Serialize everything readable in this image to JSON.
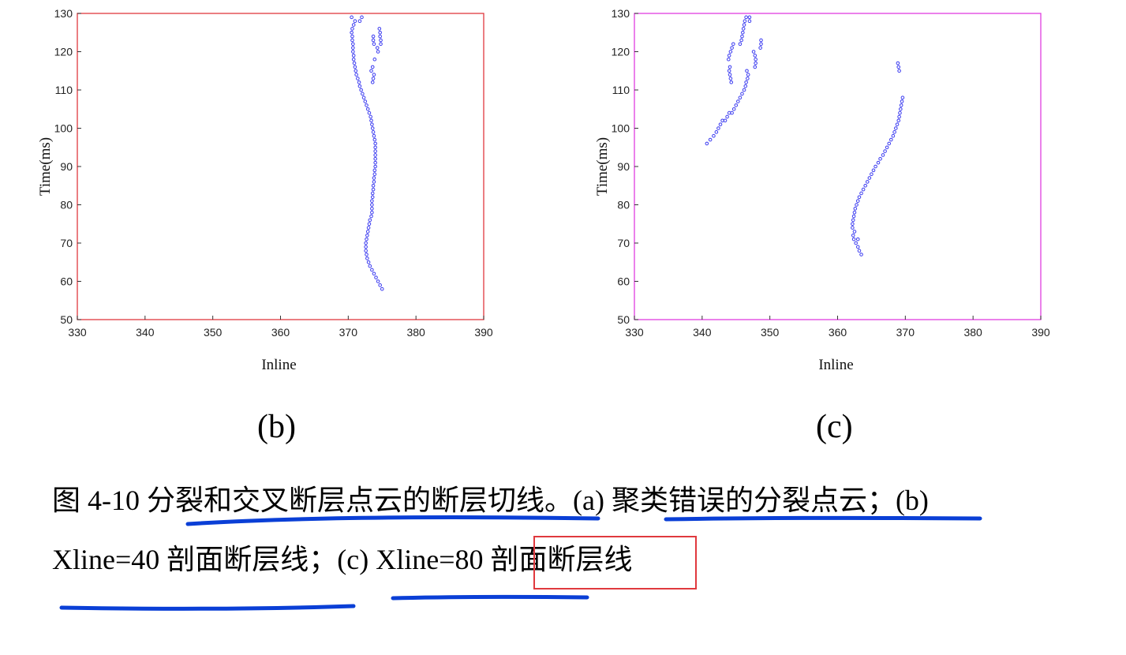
{
  "charts": {
    "b": {
      "panel_label": "(b)"
    },
    "c": {
      "panel_label": "(c)"
    }
  },
  "caption": {
    "line1": "图 4-10  分裂和交叉断层点云的断层切线。(a)  聚类错误的分裂点云；(b)",
    "line2_part1": "Xline=40 剖面断层线；(c) Xline=80 ",
    "line2_boxed": "剖面断层线"
  },
  "colors": {
    "frame_b": "#e0393e",
    "frame_c": "#e03de0",
    "points": "#3a3af0",
    "annotation_underline": "#0a3fd6",
    "annotation_box": "#e0393e"
  },
  "chart_data": [
    {
      "type": "scatter",
      "id": "b",
      "xlabel": "Inline",
      "ylabel": "Time(ms)",
      "xlim": [
        330,
        390
      ],
      "ylim": [
        50,
        130
      ],
      "xticks": [
        330,
        340,
        350,
        360,
        370,
        380,
        390
      ],
      "yticks": [
        50,
        60,
        70,
        80,
        90,
        100,
        110,
        120,
        130
      ],
      "grid": false,
      "series": [
        {
          "points": [
            [
              375.0,
              58
            ],
            [
              374.7,
              59
            ],
            [
              374.4,
              60
            ],
            [
              374.1,
              61
            ],
            [
              373.8,
              62
            ],
            [
              373.5,
              63
            ],
            [
              373.2,
              64
            ],
            [
              373.0,
              65
            ],
            [
              372.8,
              66
            ],
            [
              372.7,
              67
            ],
            [
              372.6,
              68
            ],
            [
              372.6,
              69
            ],
            [
              372.6,
              70
            ],
            [
              372.7,
              71
            ],
            [
              372.8,
              72
            ],
            [
              372.9,
              73
            ],
            [
              373.0,
              74
            ],
            [
              373.1,
              75
            ],
            [
              373.2,
              76
            ],
            [
              373.4,
              77
            ],
            [
              373.5,
              78
            ],
            [
              373.5,
              79
            ],
            [
              373.5,
              80
            ],
            [
              373.5,
              81
            ],
            [
              373.6,
              82
            ],
            [
              373.6,
              83
            ],
            [
              373.7,
              84
            ],
            [
              373.7,
              85
            ],
            [
              373.8,
              86
            ],
            [
              373.8,
              87
            ],
            [
              373.9,
              88
            ],
            [
              373.9,
              89
            ],
            [
              374.0,
              90
            ],
            [
              374.0,
              91
            ],
            [
              374.0,
              92
            ],
            [
              374.0,
              93
            ],
            [
              374.0,
              94
            ],
            [
              374.0,
              95
            ],
            [
              374.0,
              96
            ],
            [
              373.9,
              97
            ],
            [
              373.8,
              98
            ],
            [
              373.7,
              99
            ],
            [
              373.6,
              100
            ],
            [
              373.5,
              101
            ],
            [
              373.4,
              102
            ],
            [
              373.3,
              103
            ],
            [
              373.1,
              104
            ],
            [
              372.9,
              105
            ],
            [
              372.7,
              106
            ],
            [
              372.5,
              107
            ],
            [
              372.3,
              108
            ],
            [
              372.1,
              109
            ],
            [
              371.9,
              110
            ],
            [
              371.7,
              111
            ],
            [
              371.6,
              112
            ],
            [
              371.4,
              113
            ],
            [
              371.2,
              114
            ],
            [
              371.1,
              115
            ],
            [
              371.0,
              116
            ],
            [
              370.9,
              117
            ],
            [
              370.8,
              118
            ],
            [
              370.8,
              119
            ],
            [
              370.7,
              120
            ],
            [
              370.7,
              121
            ],
            [
              370.7,
              122
            ],
            [
              370.6,
              123
            ],
            [
              370.6,
              124
            ],
            [
              370.5,
              125
            ],
            [
              370.6,
              126
            ],
            [
              370.8,
              127
            ],
            [
              371.0,
              128
            ],
            [
              370.5,
              129
            ],
            [
              372.0,
              129
            ],
            [
              371.7,
              128
            ],
            [
              373.4,
              115
            ],
            [
              373.6,
              116
            ],
            [
              373.8,
              114
            ],
            [
              373.7,
              113
            ],
            [
              373.6,
              112
            ],
            [
              373.9,
              118
            ],
            [
              373.8,
              122
            ],
            [
              373.7,
              123
            ],
            [
              373.7,
              124
            ],
            [
              374.4,
              120
            ],
            [
              374.3,
              121
            ],
            [
              374.8,
              122
            ],
            [
              374.8,
              123
            ],
            [
              374.7,
              124
            ],
            [
              374.7,
              125
            ],
            [
              374.6,
              126
            ]
          ]
        }
      ]
    },
    {
      "type": "scatter",
      "id": "c",
      "xlabel": "Inline",
      "ylabel": "Time(ms)",
      "xlim": [
        330,
        390
      ],
      "ylim": [
        50,
        130
      ],
      "xticks": [
        330,
        340,
        350,
        360,
        370,
        380,
        390
      ],
      "yticks": [
        50,
        60,
        70,
        80,
        90,
        100,
        110,
        120,
        130
      ],
      "grid": false,
      "series": [
        {
          "points": [
            [
              363.5,
              67
            ],
            [
              363.2,
              68
            ],
            [
              363.0,
              69
            ],
            [
              362.7,
              70
            ],
            [
              362.4,
              71
            ],
            [
              362.3,
              72
            ],
            [
              362.5,
              73
            ],
            [
              363.0,
              71
            ],
            [
              362.2,
              74
            ],
            [
              362.2,
              75
            ],
            [
              362.3,
              76
            ],
            [
              362.4,
              77
            ],
            [
              362.5,
              78
            ],
            [
              362.6,
              79
            ],
            [
              362.8,
              80
            ],
            [
              363.0,
              81
            ],
            [
              363.2,
              82
            ],
            [
              363.5,
              83
            ],
            [
              363.8,
              84
            ],
            [
              364.1,
              85
            ],
            [
              364.4,
              86
            ],
            [
              364.7,
              87
            ],
            [
              365.0,
              88
            ],
            [
              365.3,
              89
            ],
            [
              365.6,
              90
            ],
            [
              366.0,
              91
            ],
            [
              366.3,
              92
            ],
            [
              366.7,
              93
            ],
            [
              367.0,
              94
            ],
            [
              367.3,
              95
            ],
            [
              367.6,
              96
            ],
            [
              367.9,
              97
            ],
            [
              368.2,
              98
            ],
            [
              368.4,
              99
            ],
            [
              368.6,
              100
            ],
            [
              368.8,
              101
            ],
            [
              369.0,
              102
            ],
            [
              369.1,
              103
            ],
            [
              369.2,
              104
            ],
            [
              369.3,
              105
            ],
            [
              369.4,
              106
            ],
            [
              369.5,
              107
            ],
            [
              369.6,
              108
            ],
            [
              369.1,
              115
            ],
            [
              369.0,
              116
            ],
            [
              368.9,
              117
            ],
            [
              340.7,
              96
            ],
            [
              341.2,
              97
            ],
            [
              341.7,
              98
            ],
            [
              342.1,
              99
            ],
            [
              342.4,
              100
            ],
            [
              342.7,
              101
            ],
            [
              343.0,
              102
            ],
            [
              343.4,
              102
            ],
            [
              343.7,
              103
            ],
            [
              344.0,
              104
            ],
            [
              344.4,
              104
            ],
            [
              344.7,
              105
            ],
            [
              345.0,
              106
            ],
            [
              345.3,
              107
            ],
            [
              345.6,
              108
            ],
            [
              345.9,
              109
            ],
            [
              346.2,
              110
            ],
            [
              346.4,
              111
            ],
            [
              346.5,
              112
            ],
            [
              346.7,
              113
            ],
            [
              346.8,
              114
            ],
            [
              346.6,
              115
            ],
            [
              344.3,
              112
            ],
            [
              344.2,
              113
            ],
            [
              344.1,
              114
            ],
            [
              344.0,
              115
            ],
            [
              344.1,
              116
            ],
            [
              343.9,
              118
            ],
            [
              344.0,
              119
            ],
            [
              344.2,
              120
            ],
            [
              344.4,
              121
            ],
            [
              344.6,
              122
            ],
            [
              345.6,
              122
            ],
            [
              345.8,
              123
            ],
            [
              345.9,
              124
            ],
            [
              346.0,
              125
            ],
            [
              346.1,
              126
            ],
            [
              346.2,
              127
            ],
            [
              346.3,
              128
            ],
            [
              346.5,
              129
            ],
            [
              347.0,
              129
            ],
            [
              347.0,
              128
            ],
            [
              347.8,
              116
            ],
            [
              347.9,
              117
            ],
            [
              347.9,
              118
            ],
            [
              347.8,
              119
            ],
            [
              347.6,
              120
            ],
            [
              348.6,
              121
            ],
            [
              348.7,
              122
            ],
            [
              348.7,
              123
            ]
          ]
        }
      ]
    }
  ]
}
